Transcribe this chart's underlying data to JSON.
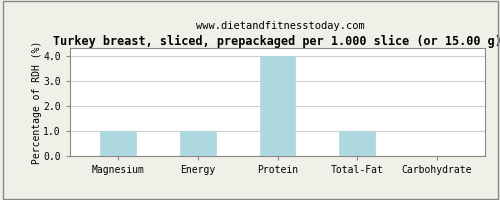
{
  "title": "Turkey breast, sliced, prepackaged per 1.000 slice (or 15.00 g)",
  "subtitle": "www.dietandfitnesstoday.com",
  "categories": [
    "Magnesium",
    "Energy",
    "Protein",
    "Total-Fat",
    "Carbohydrate"
  ],
  "values": [
    1.0,
    1.0,
    4.0,
    1.0,
    0.0
  ],
  "bar_color": "#aed8e0",
  "bar_edge_color": "#aed8e0",
  "ylabel": "Percentage of RDH (%)",
  "ylim": [
    0,
    4.3
  ],
  "yticks": [
    0.0,
    1.0,
    2.0,
    3.0,
    4.0
  ],
  "plot_bg_color": "#ffffff",
  "fig_bg_color": "#f0f0e8",
  "grid_color": "#cccccc",
  "title_fontsize": 8.5,
  "subtitle_fontsize": 7.5,
  "ylabel_fontsize": 7,
  "tick_fontsize": 7,
  "border_color": "#888888"
}
